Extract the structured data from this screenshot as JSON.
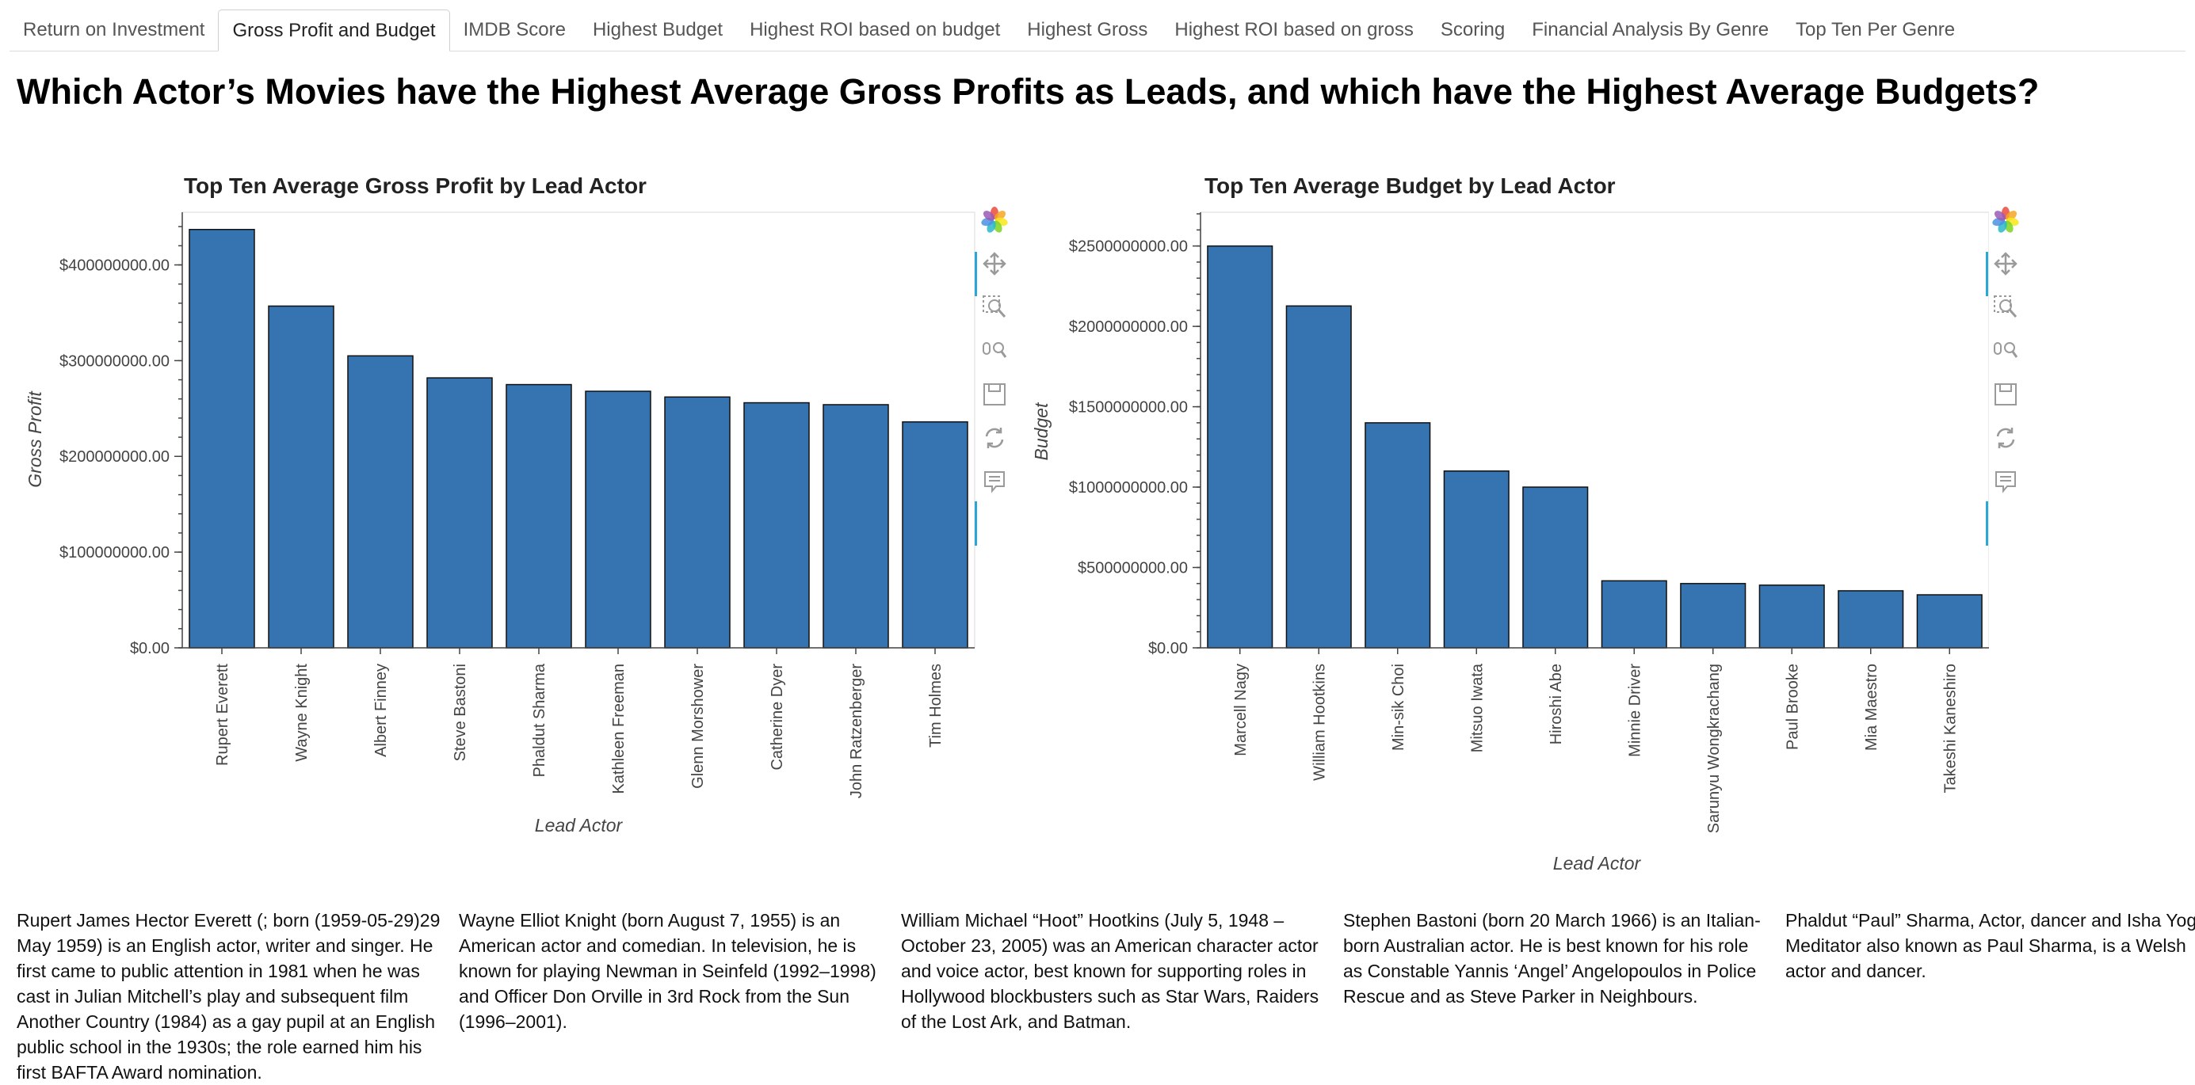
{
  "tabs": [
    {
      "label": "Return on Investment",
      "active": false
    },
    {
      "label": "Gross Profit and Budget",
      "active": true
    },
    {
      "label": "IMDB Score",
      "active": false
    },
    {
      "label": "Highest Budget",
      "active": false
    },
    {
      "label": "Highest ROI based on budget",
      "active": false
    },
    {
      "label": "Highest Gross",
      "active": false
    },
    {
      "label": "Highest ROI based on gross",
      "active": false
    },
    {
      "label": "Scoring",
      "active": false
    },
    {
      "label": "Financial Analysis By Genre",
      "active": false
    },
    {
      "label": "Top Ten Per Genre",
      "active": false
    }
  ],
  "page_title": "Which Actor’s Movies have the Highest Average Gross Profits as Leads, and which have the Highest Average Budgets?",
  "toolbar_icons": [
    "bokeh-logo-icon",
    "pan-icon",
    "box-zoom-icon",
    "wheel-zoom-icon",
    "save-icon",
    "reset-icon",
    "hover-icon"
  ],
  "colors": {
    "bar": "#3574b0",
    "accent": "#2ba7d6"
  },
  "chart_data": [
    {
      "type": "bar",
      "title": "Top Ten Average Gross Profit by Lead Actor",
      "xlabel": "Lead Actor",
      "ylabel": "Gross Profit",
      "categories": [
        "Rupert Everett",
        "Wayne Knight",
        "Albert Finney",
        "Steve Bastoni",
        "Phaldut Sharma",
        "Kathleen Freeman",
        "Glenn Morshower",
        "Catherine Dyer",
        "John Ratzenberger",
        "Tim Holmes"
      ],
      "values": [
        437000000,
        357000000,
        305000000,
        282000000,
        275000000,
        268000000,
        262000000,
        256000000,
        254000000,
        236000000
      ],
      "yticks": [
        0,
        100000000,
        200000000,
        300000000,
        400000000
      ],
      "ytick_labels": [
        "$0.00",
        "$100000000.00",
        "$200000000.00",
        "$300000000.00",
        "$400000000.00"
      ],
      "ylim": [
        0,
        455000000
      ],
      "grid": false
    },
    {
      "type": "bar",
      "title": "Top Ten Average Budget by Lead Actor",
      "xlabel": "Lead Actor",
      "ylabel": "Budget",
      "categories": [
        "Marcell Nagy",
        "William Hootkins",
        "Min-sik Choi",
        "Mitsuo Iwata",
        "Hiroshi Abe",
        "Minnie Driver",
        "Sarunyu Wongkrachang",
        "Paul Brooke",
        "Mia Maestro",
        "Takeshi Kaneshiro"
      ],
      "values": [
        2500000000,
        2127000000,
        1400000000,
        1100000000,
        1000000000,
        417000000,
        400000000,
        390000000,
        355000000,
        330000000
      ],
      "yticks": [
        0,
        500000000,
        1000000000,
        1500000000,
        2000000000,
        2500000000
      ],
      "ytick_labels": [
        "$0.00",
        "$500000000.00",
        "$1000000000.00",
        "$1500000000.00",
        "$2000000000.00",
        "$2500000000.00"
      ],
      "ylim": [
        0,
        2710000000
      ],
      "grid": false
    }
  ],
  "bios": [
    "Rupert James Hector Everett (; born (1959-05-29)29 May 1959) is an English actor, writer and singer. He first came to public attention in 1981 when he was cast in Julian Mitchell’s play and subsequent film Another Country (1984) as a gay pupil at an English public school in the 1930s; the role earned him his first BAFTA Award nomination.",
    "Wayne Elliot Knight (born August 7, 1955) is an American actor and comedian. In television, he is known for playing Newman in Seinfeld (1992–1998) and Officer Don Orville in 3rd Rock from the Sun (1996–2001).",
    "William Michael “Hoot” Hootkins (July 5, 1948 – October 23, 2005) was an American character actor and voice actor, best known for supporting roles in Hollywood blockbusters such as Star Wars, Raiders of the Lost Ark, and Batman.",
    "Stephen Bastoni (born 20 March 1966) is an Italian-born Australian actor. He is best known for his role as Constable Yannis ‘Angel’ Angelopoulos in Police Rescue and as Steve Parker in Neighbours.",
    "Phaldut “Paul” Sharma, Actor, dancer and Isha Yoga Meditator also known as Paul Sharma, is a Welsh actor and dancer."
  ]
}
